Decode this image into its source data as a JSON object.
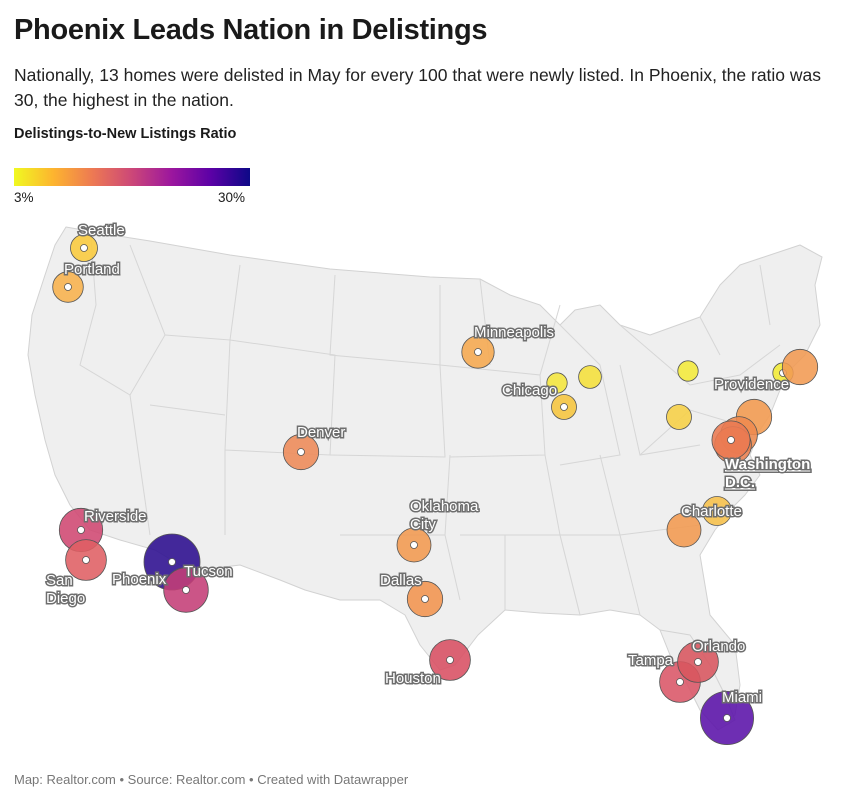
{
  "title": "Phoenix Leads Nation in Delistings",
  "subtitle": "Nationally, 13 homes were delisted in May for every 100 that were newly listed. In Phoenix, the ratio was 30, the highest in the nation.",
  "legend": {
    "title": "Delistings-to-New Listings Ratio",
    "min_label": "3%",
    "max_label": "30%",
    "colors": [
      "#f0f921",
      "#fdb42f",
      "#ed7953",
      "#cc4778",
      "#9c179e",
      "#5c01a6",
      "#0d0887"
    ]
  },
  "footer": "Map: Realtor.com • Source: Realtor.com • Created with Datawrapper",
  "map": {
    "type": "proportional-symbol",
    "region": "United States",
    "markers": [
      {
        "id": "seattle",
        "label": "Seattle",
        "ratio": 7,
        "color": "#fbcb3c"
      },
      {
        "id": "portland",
        "label": "Portland",
        "ratio": 9,
        "color": "#f8b24c"
      },
      {
        "id": "minneapolis",
        "label": "Minneapolis",
        "ratio": 10,
        "color": "#f6a84e"
      },
      {
        "id": "milwaukee",
        "label": "",
        "ratio": 4,
        "color": "#f5e63c"
      },
      {
        "id": "chicago",
        "label": "Chicago",
        "ratio": 6,
        "color": "#f6c53e"
      },
      {
        "id": "detroit",
        "label": "",
        "ratio": 5,
        "color": "#f5e03a"
      },
      {
        "id": "buffalo",
        "label": "",
        "ratio": 4,
        "color": "#f4ea3a"
      },
      {
        "id": "pittsburgh",
        "label": "",
        "ratio": 6,
        "color": "#f7d045"
      },
      {
        "id": "providence",
        "label": "Providence",
        "ratio": 4,
        "color": "#f3ec36"
      },
      {
        "id": "boston",
        "label": "",
        "ratio": 12,
        "color": "#f19a52"
      },
      {
        "id": "new-york",
        "label": "",
        "ratio": 12,
        "color": "#f39a4e"
      },
      {
        "id": "philadelphia",
        "label": "",
        "ratio": 13,
        "color": "#ee8a4f"
      },
      {
        "id": "baltimore",
        "label": "",
        "ratio": 13,
        "color": "#ec804e"
      },
      {
        "id": "washington-dc",
        "label": "Washington D.C.",
        "ratio": 14,
        "color": "#ea7a52"
      },
      {
        "id": "denver",
        "label": "Denver",
        "ratio": 12,
        "color": "#ee8a58"
      },
      {
        "id": "oklahoma-city",
        "label": "Oklahoma City",
        "ratio": 11,
        "color": "#f39a50"
      },
      {
        "id": "dallas",
        "label": "Dallas",
        "ratio": 12,
        "color": "#f2944e"
      },
      {
        "id": "charlotte",
        "label": "Charlotte",
        "ratio": 8,
        "color": "#f7c04a"
      },
      {
        "id": "raleigh",
        "label": "",
        "ratio": 11,
        "color": "#f39a50"
      },
      {
        "id": "riverside",
        "label": "Riverside",
        "ratio": 18,
        "color": "#cf4771"
      },
      {
        "id": "san-diego",
        "label": "San Diego",
        "ratio": 16,
        "color": "#df5e63"
      },
      {
        "id": "phoenix",
        "label": "Phoenix",
        "ratio": 30,
        "color": "#2b0d8e"
      },
      {
        "id": "tucson",
        "label": "Tucson",
        "ratio": 19,
        "color": "#c43e76"
      },
      {
        "id": "houston",
        "label": "Houston",
        "ratio": 16,
        "color": "#d84f62"
      },
      {
        "id": "tampa",
        "label": "Tampa",
        "ratio": 16,
        "color": "#da5566"
      },
      {
        "id": "orlando",
        "label": "Orlando",
        "ratio": 16,
        "color": "#d8555e"
      },
      {
        "id": "miami",
        "label": "Miami",
        "ratio": 27,
        "color": "#5a11a8"
      }
    ]
  }
}
